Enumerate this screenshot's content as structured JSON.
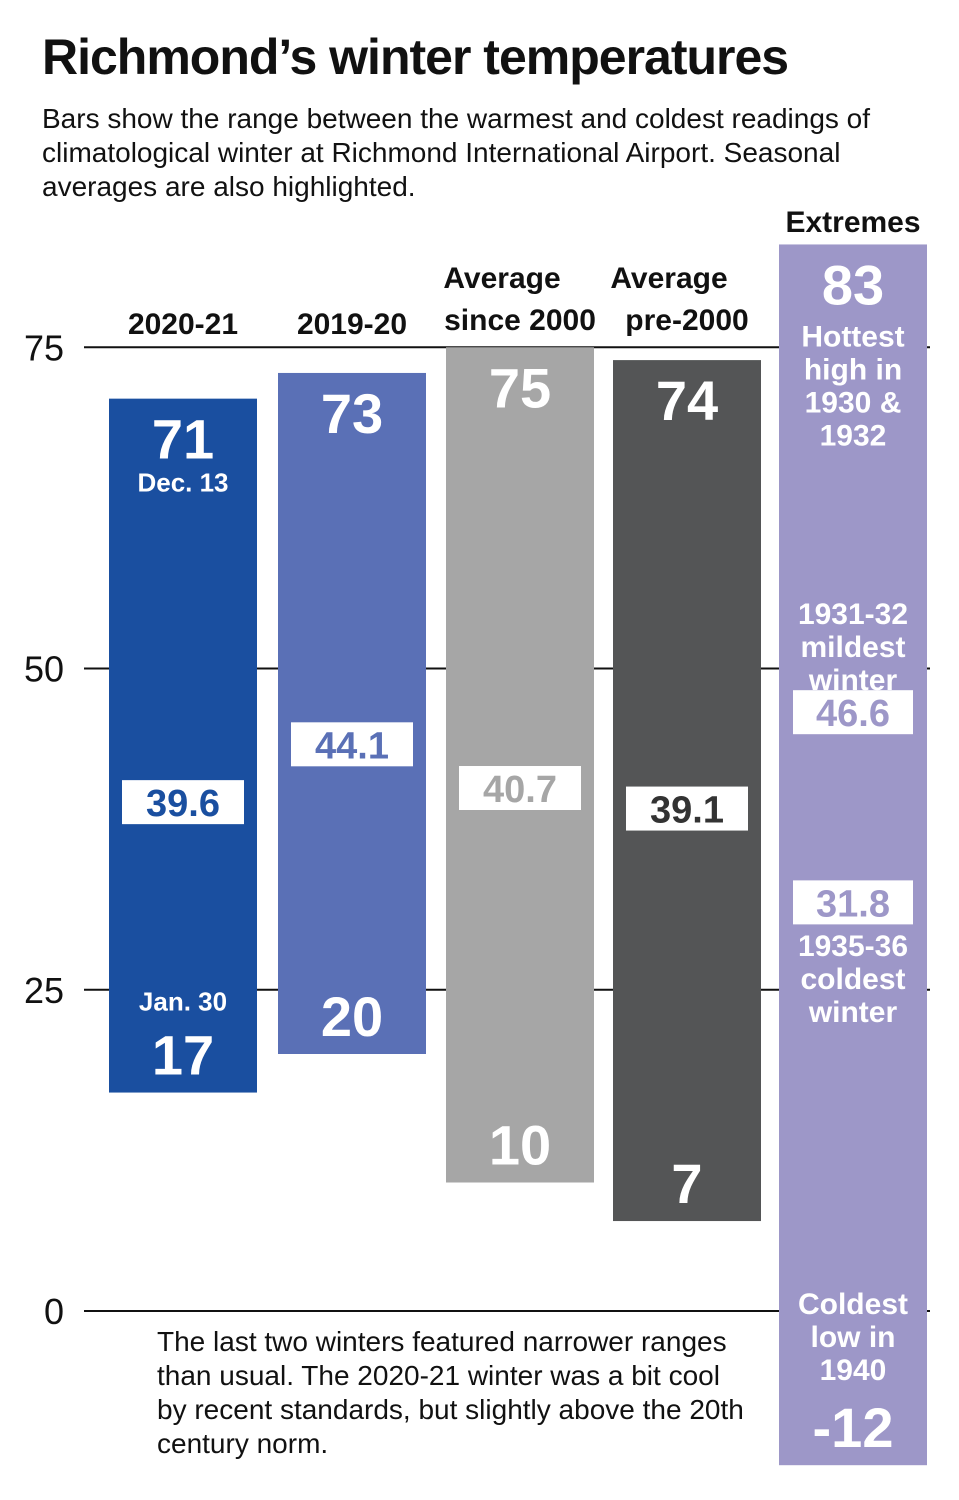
{
  "title": "Richmond’s winter temperatures",
  "subtitle": "Bars show the range between the warmest and coldest readings of climatological winter at Richmond International Airport. Seasonal averages are also highlighted.",
  "note": "The last two winters featured narrower ranges than usual. The 2020-21 winter was a bit cool by recent standards, but slightly above the 20th century norm.",
  "chart_data": {
    "type": "range-bar",
    "ylim": [
      -12,
      83
    ],
    "yticks": [
      0,
      25,
      50,
      75
    ],
    "grid": true,
    "series": [
      {
        "label": "2020-21",
        "color": "#1a4fa0",
        "high": 71,
        "low": 17,
        "average": 39.6,
        "high_date": "Dec. 13",
        "low_date": "Jan. 30",
        "avg_color": "#1a4fa0"
      },
      {
        "label": "2019-20",
        "color": "#5a70b6",
        "high": 73,
        "low": 20,
        "average": 44.1,
        "avg_color": "#5a70b6"
      },
      {
        "label": "Average since 2000",
        "label_lines": [
          "Average",
          "since 2000"
        ],
        "color": "#a6a6a6",
        "high": 75,
        "low": 10,
        "average": 40.7,
        "avg_color": "#a6a6a6"
      },
      {
        "label": "Average pre-2000",
        "label_lines": [
          "Average",
          "pre-2000"
        ],
        "color": "#545556",
        "high": 74,
        "low": 7,
        "average": 39.1,
        "avg_color": "#333333"
      }
    ],
    "extremes": {
      "header": "Extremes",
      "color": "#9d97c8",
      "high": 83,
      "high_note": [
        "Hottest",
        "high in",
        "1930 &",
        "1932"
      ],
      "mildest_note": [
        "1931-32",
        "mildest",
        "winter"
      ],
      "mildest_avg": 46.6,
      "coldest_avg": 31.8,
      "coldest_note": [
        "1935-36",
        "coldest",
        "winter"
      ],
      "low_note": [
        "Coldest",
        "low in",
        "1940"
      ],
      "low": -12
    }
  }
}
